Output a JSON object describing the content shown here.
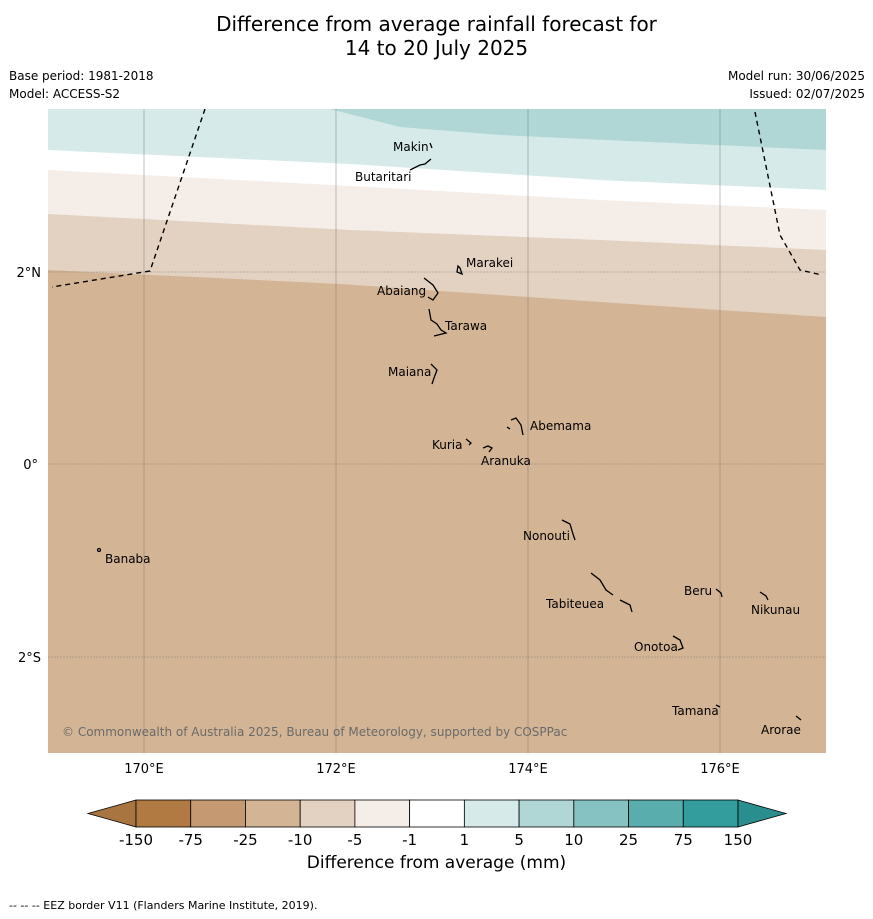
{
  "title_line1": "Difference from average rainfall forecast for",
  "title_line2": "14 to 20 July 2025",
  "base_period": "Base period: 1981-2018",
  "model": "Model: ACCESS-S2",
  "model_run": "Model run: 30/06/2025",
  "issued": "Issued: 02/07/2025",
  "copyright": "© Commonwealth of Australia 2025, Bureau of Meteorology, supported by COSPPac",
  "footer": "--  --  -- EEZ border V11 (Flanders Marine Institute, 2019).",
  "colorbar": {
    "label": "Difference from average (mm)",
    "ticks": [
      "-150",
      "-75",
      "-25",
      "-10",
      "-5",
      "-1",
      "1",
      "5",
      "10",
      "25",
      "75",
      "150"
    ],
    "colors": [
      "#a87540",
      "#b17a43",
      "#c59a73",
      "#d3b494",
      "#e3d1c1",
      "#f4ede8",
      "#ffffff",
      "#d6eae9",
      "#b0d6d6",
      "#86c2c2",
      "#5aadad",
      "#339c9c",
      "#2a8e8e"
    ]
  },
  "map": {
    "lon_labels": [
      "170°E",
      "172°E",
      "174°E",
      "176°E"
    ],
    "lat_labels": [
      "2°N",
      "0°",
      "2°S"
    ],
    "lon_values": [
      170,
      172,
      174,
      176
    ],
    "lat_values": [
      2,
      0,
      -2
    ],
    "extent": {
      "lon_min": 169,
      "lon_max": 177.1,
      "lat_min": -3,
      "lat_max": 3.7
    },
    "fill_colors": {
      "band_10_25": "#b0d6d6",
      "band_5_10": "#d6eae9",
      "band_1_5": "#ffffff",
      "band_m1_1": "#f4ede8",
      "band_m5_m1": "#e3d1c1",
      "band_m10_m5": "#d3b494"
    },
    "islands": [
      {
        "name": "Makin"
      },
      {
        "name": "Butaritari"
      },
      {
        "name": "Marakei"
      },
      {
        "name": "Abaiang"
      },
      {
        "name": "Tarawa"
      },
      {
        "name": "Maiana"
      },
      {
        "name": "Abemama"
      },
      {
        "name": "Kuria"
      },
      {
        "name": "Aranuka"
      },
      {
        "name": "Nonouti"
      },
      {
        "name": "Banaba"
      },
      {
        "name": "Tabiteuea"
      },
      {
        "name": "Beru"
      },
      {
        "name": "Nikunau"
      },
      {
        "name": "Onotoa"
      },
      {
        "name": "Tamana"
      },
      {
        "name": "Arorae"
      }
    ]
  }
}
